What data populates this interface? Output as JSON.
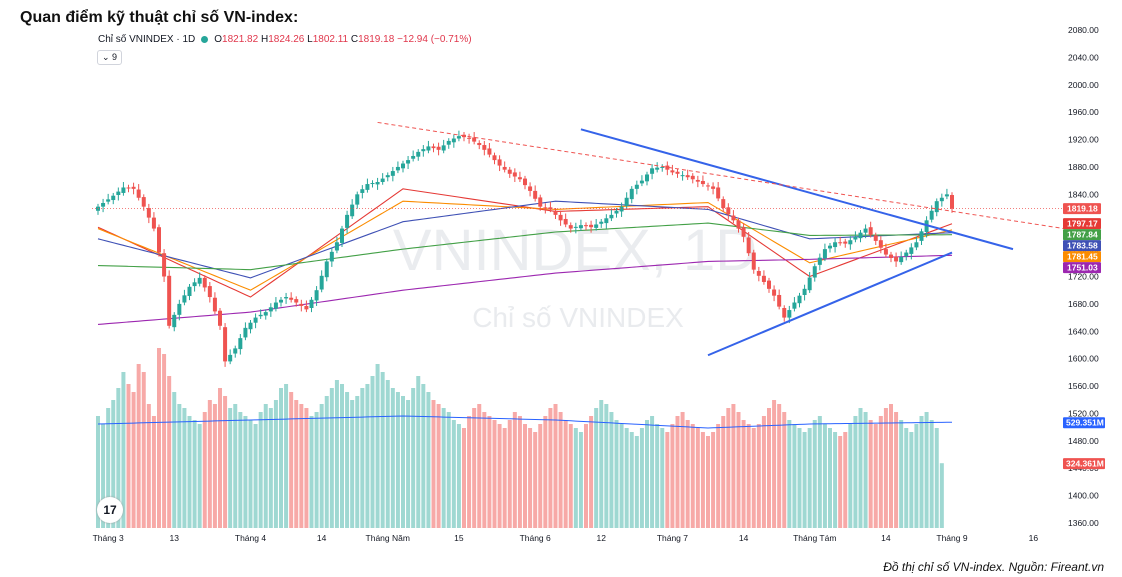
{
  "page_title": "Quan điểm kỹ thuật chỉ số VN-index:",
  "caption": "Đồ thị chỉ số VN-index. Nguồn: Fireant.vn",
  "header": {
    "symbol": "Chỉ số VNINDEX · 1D",
    "o_label": "O",
    "o_value": "1821.82",
    "h_label": "H",
    "h_value": "1824.26",
    "l_label": "L",
    "l_value": "1802.11",
    "c_label": "C",
    "c_value": "1819.18",
    "change": "−12.94 (−0.71%)",
    "indicator_toggle": "⌄ 9"
  },
  "watermark": {
    "line1": "VNINDEX, 1D",
    "line2": "Chỉ số VNINDEX"
  },
  "colors": {
    "up": "#26a69a",
    "down": "#ef5350",
    "up_vol": "#9fd8d2",
    "down_vol": "#f7a9a7",
    "ma5": "#e53935",
    "ma10": "#fb8c00",
    "ma20": "#3f51b5",
    "ma50": "#43a047",
    "ma200": "#9c27b0",
    "trend": "#3563e9",
    "resistance": "#ef5350"
  },
  "chart_data": {
    "type": "candlestick",
    "y_ticks": [
      "2080.00",
      "2040.00",
      "2000.00",
      "1960.00",
      "1920.00",
      "1880.00",
      "1840.00",
      "1800.00",
      "1760.00",
      "1720.00",
      "1680.00",
      "1640.00",
      "1600.00",
      "1560.00",
      "1520.00",
      "1480.00",
      "1440.00",
      "1400.00",
      "1360.00"
    ],
    "x_ticks": [
      "Tháng 3",
      "13",
      "Tháng 4",
      "14",
      "Tháng Năm",
      "15",
      "Tháng 6",
      "12",
      "Tháng 7",
      "14",
      "Tháng Tám",
      "14",
      "Tháng 9",
      "16"
    ],
    "close_points": [
      [
        0,
        1822
      ],
      [
        3,
        1838
      ],
      [
        5,
        1850
      ],
      [
        7,
        1848
      ],
      [
        9,
        1822
      ],
      [
        11,
        1790
      ],
      [
        13,
        1720
      ],
      [
        14,
        1648
      ],
      [
        16,
        1680
      ],
      [
        18,
        1705
      ],
      [
        20,
        1718
      ],
      [
        22,
        1690
      ],
      [
        24,
        1648
      ],
      [
        25,
        1596
      ],
      [
        27,
        1615
      ],
      [
        29,
        1645
      ],
      [
        31,
        1660
      ],
      [
        33,
        1668
      ],
      [
        35,
        1682
      ],
      [
        37,
        1690
      ],
      [
        39,
        1682
      ],
      [
        41,
        1672
      ],
      [
        43,
        1700
      ],
      [
        45,
        1742
      ],
      [
        47,
        1770
      ],
      [
        49,
        1810
      ],
      [
        51,
        1840
      ],
      [
        53,
        1855
      ],
      [
        55,
        1858
      ],
      [
        57,
        1868
      ],
      [
        59,
        1880
      ],
      [
        61,
        1890
      ],
      [
        63,
        1902
      ],
      [
        65,
        1910
      ],
      [
        67,
        1905
      ],
      [
        69,
        1918
      ],
      [
        71,
        1925
      ],
      [
        73,
        1922
      ],
      [
        75,
        1912
      ],
      [
        77,
        1898
      ],
      [
        79,
        1882
      ],
      [
        81,
        1870
      ],
      [
        83,
        1862
      ],
      [
        85,
        1845
      ],
      [
        87,
        1822
      ],
      [
        89,
        1818
      ],
      [
        91,
        1802
      ],
      [
        93,
        1790
      ],
      [
        95,
        1795
      ],
      [
        97,
        1792
      ],
      [
        99,
        1800
      ],
      [
        101,
        1810
      ],
      [
        103,
        1822
      ],
      [
        105,
        1848
      ],
      [
        107,
        1860
      ],
      [
        109,
        1878
      ],
      [
        111,
        1880
      ],
      [
        113,
        1872
      ],
      [
        115,
        1868
      ],
      [
        117,
        1862
      ],
      [
        119,
        1855
      ],
      [
        121,
        1848
      ],
      [
        123,
        1820
      ],
      [
        125,
        1802
      ],
      [
        127,
        1778
      ],
      [
        129,
        1730
      ],
      [
        131,
        1712
      ],
      [
        133,
        1692
      ],
      [
        135,
        1660
      ],
      [
        137,
        1682
      ],
      [
        139,
        1702
      ],
      [
        141,
        1735
      ],
      [
        143,
        1760
      ],
      [
        145,
        1770
      ],
      [
        147,
        1768
      ],
      [
        149,
        1778
      ],
      [
        151,
        1790
      ],
      [
        153,
        1772
      ],
      [
        155,
        1752
      ],
      [
        157,
        1742
      ],
      [
        159,
        1755
      ],
      [
        161,
        1770
      ],
      [
        163,
        1802
      ],
      [
        165,
        1830
      ],
      [
        167,
        1840
      ],
      [
        168,
        1819
      ]
    ],
    "series": [
      {
        "name": "",
        "points": [
          [
            0,
            1792
          ],
          [
            30,
            1690
          ],
          [
            60,
            1848
          ],
          [
            90,
            1815
          ],
          [
            120,
            1822
          ],
          [
            140,
            1720
          ],
          [
            168,
            1797
          ]
        ]
      },
      {
        "name": "",
        "points": [
          [
            0,
            1790
          ],
          [
            30,
            1700
          ],
          [
            60,
            1830
          ],
          [
            90,
            1818
          ],
          [
            120,
            1828
          ],
          [
            140,
            1740
          ],
          [
            168,
            1788
          ]
        ]
      },
      {
        "name": "",
        "points": [
          [
            0,
            1775
          ],
          [
            30,
            1718
          ],
          [
            60,
            1800
          ],
          [
            90,
            1830
          ],
          [
            120,
            1818
          ],
          [
            140,
            1775
          ],
          [
            168,
            1784
          ]
        ]
      },
      {
        "name": "",
        "points": [
          [
            0,
            1736
          ],
          [
            30,
            1730
          ],
          [
            60,
            1760
          ],
          [
            90,
            1785
          ],
          [
            120,
            1798
          ],
          [
            140,
            1780
          ],
          [
            168,
            1781
          ]
        ]
      },
      {
        "name": "",
        "points": [
          [
            0,
            1650
          ],
          [
            30,
            1668
          ],
          [
            60,
            1700
          ],
          [
            90,
            1725
          ],
          [
            120,
            1742
          ],
          [
            140,
            1745
          ],
          [
            168,
            1751
          ]
        ]
      }
    ],
    "trendlines": [
      {
        "name": "",
        "from": [
          95,
          1935
        ],
        "to": [
          180,
          1760
        ]
      },
      {
        "name": "",
        "from": [
          120,
          1605
        ],
        "to": [
          168,
          1755
        ]
      },
      {
        "name": "",
        "from": [
          55,
          1945
        ],
        "to": [
          190,
          1790
        ]
      }
    ],
    "price_tags": [
      {
        "label": "1819.18",
        "value": 1819.18,
        "color": "#ef5350"
      },
      {
        "label": "1797.17",
        "value": 1797.17,
        "color": "#e53935"
      },
      {
        "label": "1787.84",
        "value": 1787.84,
        "color": "#43a047"
      },
      {
        "label": "1783.58",
        "value": 1783.58,
        "color": "#3f51b5"
      },
      {
        "label": "1781.45",
        "value": 1781.45,
        "color": "#fb8c00"
      },
      {
        "label": "1751.03",
        "value": 1751.03,
        "color": "#9c27b0"
      }
    ],
    "volume": {
      "ma_label": "529.351M",
      "last_label": "324.361M",
      "last_vol": 324.361,
      "ma_points": [
        [
          0,
          520
        ],
        [
          30,
          540
        ],
        [
          60,
          560
        ],
        [
          90,
          540
        ],
        [
          120,
          500
        ],
        [
          140,
          520
        ],
        [
          168,
          529
        ]
      ],
      "volumes": [
        560,
        520,
        600,
        640,
        700,
        780,
        720,
        680,
        820,
        780,
        620,
        560,
        900,
        870,
        760,
        680,
        620,
        600,
        560,
        540,
        520,
        580,
        640,
        620,
        700,
        660,
        600,
        620,
        580,
        560,
        540,
        520,
        580,
        620,
        600,
        640,
        700,
        720,
        680,
        640,
        620,
        600,
        560,
        580,
        620,
        660,
        700,
        740,
        720,
        680,
        640,
        660,
        700,
        720,
        760,
        820,
        780,
        740,
        700,
        680,
        660,
        640,
        700,
        760,
        720,
        680,
        640,
        620,
        600,
        580,
        540,
        520,
        500,
        560,
        600,
        620,
        580,
        560,
        540,
        520,
        500,
        540,
        580,
        560,
        520,
        500,
        480,
        520,
        560,
        600,
        620,
        580,
        540,
        520,
        500,
        480,
        520,
        560,
        600,
        640,
        620,
        580,
        540,
        520,
        500,
        480,
        460,
        500,
        540,
        560,
        520,
        500,
        480,
        520,
        560,
        580,
        540,
        520,
        500,
        480,
        460,
        480,
        520,
        560,
        600,
        620,
        580,
        540,
        520,
        500,
        520,
        560,
        600,
        640,
        620,
        580,
        540,
        520,
        500,
        480,
        500,
        540,
        560,
        520,
        500,
        480,
        460,
        480,
        520,
        560,
        600,
        580,
        540,
        520,
        560,
        600,
        620,
        580,
        540,
        500,
        480,
        520,
        560,
        580,
        540,
        500,
        324
      ]
    }
  }
}
